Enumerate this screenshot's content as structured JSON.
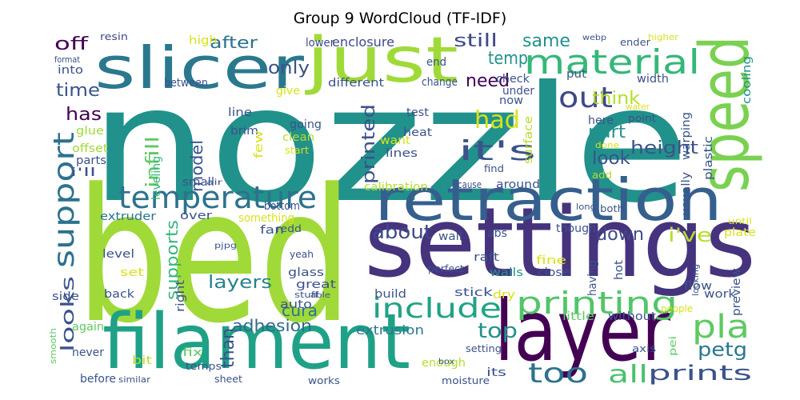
{
  "chart_data": {
    "type": "wordcloud",
    "title": "Group 9 WordCloud (TF-IDF)",
    "words": [
      "nozzle",
      "bed",
      "settings",
      "filament",
      "layer",
      "retraction",
      "speed",
      "slicer",
      "just",
      "material",
      "temperature",
      "support",
      "include",
      "printing",
      "it's",
      "pla",
      "out",
      "had",
      "too",
      "all",
      "prints",
      "top",
      "petg",
      "adhesion",
      "extrusion",
      "about",
      "i've",
      "down",
      "layers",
      "cura",
      "than",
      "looks",
      "supports",
      "infill",
      "printed",
      "model",
      "height",
      "look",
      "part",
      "think",
      "need",
      "temp",
      "same",
      "still",
      "only",
      "after",
      "off",
      "time",
      "has",
      "enclosure",
      "lower",
      "high",
      "resin",
      "i'll",
      "offset",
      "parts",
      "glue",
      "leveling",
      "small",
      "extruder",
      "over",
      "something",
      "redd",
      "bottom",
      "fan",
      "level",
      "side",
      "back",
      "set",
      "glass",
      "great",
      "yeah",
      "auto",
      "again",
      "never",
      "before",
      "bit",
      "fix",
      "temps",
      "similar",
      "sheet",
      "works",
      "enough",
      "setting",
      "its",
      "moisture",
      "box",
      "stick",
      "dry",
      "perfect",
      "walls",
      "fine",
      "close",
      "raft",
      "abs",
      "wall",
      "though",
      "plate",
      "hot",
      "work",
      "flow",
      "preview",
      "without",
      "little",
      "build",
      "right",
      "having",
      "around",
      "calibration",
      "surface",
      "different",
      "give",
      "between",
      "into",
      "format",
      "end",
      "change",
      "check",
      "under",
      "now",
      "put",
      "width",
      "cooling",
      "ender",
      "higher",
      "webp",
      "here",
      "warping",
      "plastic",
      "usually",
      "point",
      "water",
      "done",
      "add",
      "want",
      "heat",
      "test",
      "lines",
      "clean",
      "going",
      "start",
      "brim",
      "line",
      "few",
      "find",
      "cause",
      "both",
      "long",
      "until",
      "looking",
      "people",
      "axis",
      "pei",
      "smooth",
      "stuff",
      "able",
      "pjpg",
      "air"
    ]
  }
}
